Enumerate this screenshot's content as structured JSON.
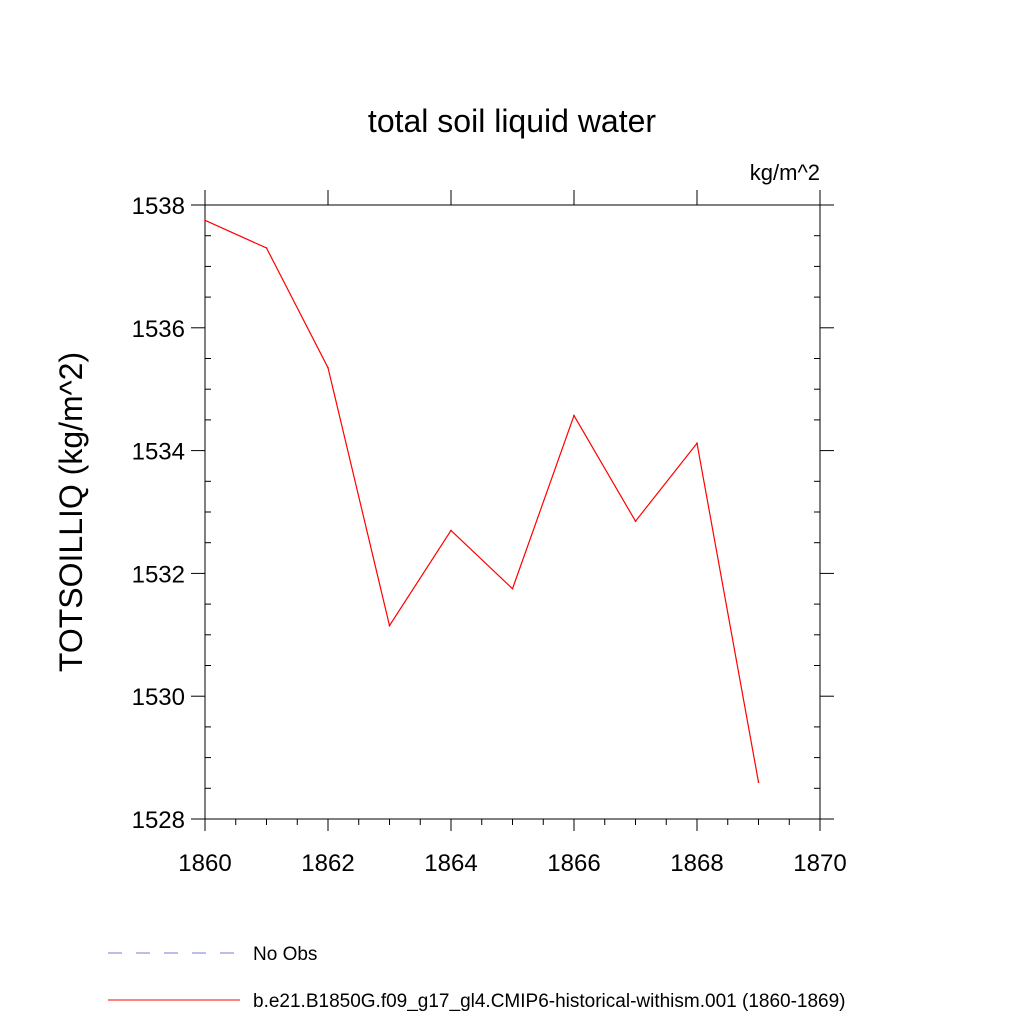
{
  "chart_data": {
    "type": "line",
    "title": "total soil liquid water",
    "units_label": "kg/m^2",
    "ylabel": "TOTSOILLIQ  (kg/m^2)",
    "xlabel": "",
    "xlim": [
      1860,
      1870
    ],
    "ylim": [
      1528,
      1538
    ],
    "xticks": [
      1860,
      1862,
      1864,
      1866,
      1868,
      1870
    ],
    "yticks": [
      1528,
      1530,
      1532,
      1534,
      1536,
      1538
    ],
    "xtick_labels": [
      "1860",
      "1862",
      "1864",
      "1866",
      "1868",
      "1870"
    ],
    "ytick_labels": [
      "1528",
      "1530",
      "1532",
      "1534",
      "1536",
      "1538"
    ],
    "grid": false,
    "legend_position": "bottom",
    "x": [
      1860,
      1861,
      1862,
      1863,
      1864,
      1865,
      1866,
      1867,
      1868,
      1869
    ],
    "series": [
      {
        "name": "b.e21.B1850G.f09_g17_gl4.CMIP6-historical-withism.001 (1860-1869)",
        "color": "#ff0000",
        "style": "solid",
        "values": [
          1537.75,
          1537.3,
          1535.35,
          1531.15,
          1532.7,
          1531.75,
          1534.57,
          1532.85,
          1534.12,
          1528.6
        ]
      }
    ],
    "legend": [
      {
        "label": "No Obs",
        "color": "#7b7bd6",
        "style": "dashed"
      },
      {
        "label": "b.e21.B1850G.f09_g17_gl4.CMIP6-historical-withism.001 (1860-1869)",
        "color": "#ff0000",
        "style": "solid"
      }
    ]
  }
}
